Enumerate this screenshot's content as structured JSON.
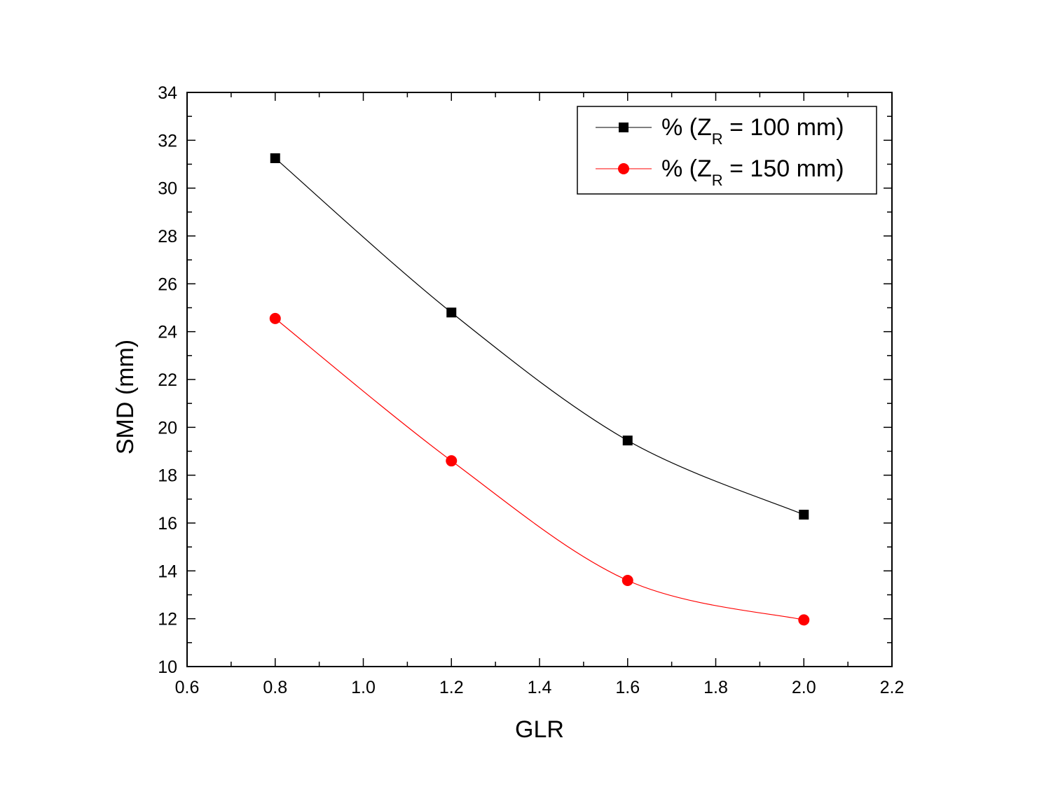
{
  "chart_data": {
    "type": "line",
    "title": "",
    "xlabel": "GLR",
    "ylabel": "SMD (mm)",
    "xlim": [
      0.6,
      2.2
    ],
    "ylim": [
      10,
      34
    ],
    "xticks": [
      "0.6",
      "0.8",
      "1.0",
      "1.2",
      "1.4",
      "1.6",
      "1.8",
      "2.0",
      "2.2"
    ],
    "yticks": [
      "10",
      "12",
      "14",
      "16",
      "18",
      "20",
      "22",
      "24",
      "26",
      "28",
      "30",
      "32",
      "34"
    ],
    "x": [
      0.8,
      1.2,
      1.6,
      2.0
    ],
    "grid": false,
    "legend_position": "top-right",
    "series": [
      {
        "name": "% (ZR = 100 mm)",
        "legend_main": "% (Z",
        "legend_sub": "R",
        "legend_tail": " = 100 mm)",
        "values": [
          31.25,
          24.8,
          19.45,
          16.35
        ],
        "marker": "square",
        "color": "#000000"
      },
      {
        "name": "% (ZR = 150 mm)",
        "legend_main": "% (Z",
        "legend_sub": "R",
        "legend_tail": " = 150 mm)",
        "values": [
          24.55,
          18.6,
          13.6,
          11.95
        ],
        "marker": "circle",
        "color": "#ff0000"
      }
    ]
  }
}
